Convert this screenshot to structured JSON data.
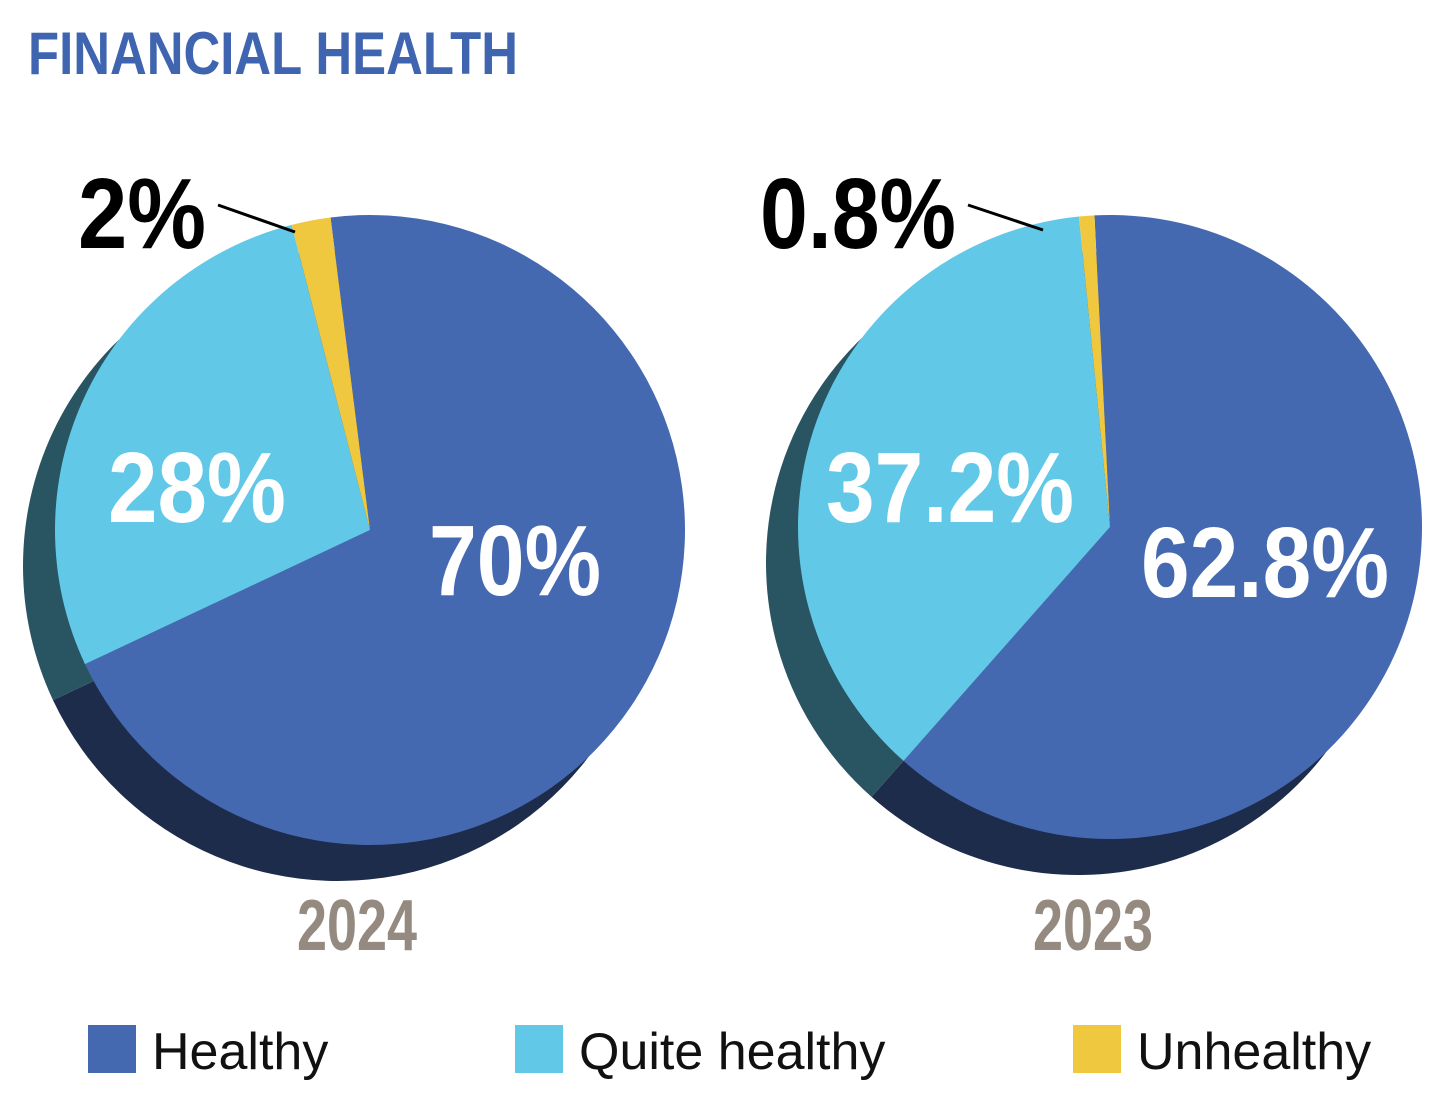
{
  "title": "FINANCIAL HEALTH",
  "chart_data": [
    {
      "type": "pie",
      "title": "2024",
      "categories": [
        "Healthy",
        "Quite healthy",
        "Unhealthy"
      ],
      "values": [
        70,
        28,
        2
      ],
      "value_labels": [
        "70%",
        "28%",
        "2%"
      ],
      "colors": [
        "#4569b1",
        "#62c8e8",
        "#f0c840"
      ]
    },
    {
      "type": "pie",
      "title": "2023",
      "categories": [
        "Healthy",
        "Quite healthy",
        "Unhealthy"
      ],
      "values": [
        62.8,
        37.2,
        0.8
      ],
      "value_labels": [
        "62.8%",
        "37.2%",
        "0.8%"
      ],
      "colors": [
        "#4569b1",
        "#62c8e8",
        "#f0c840"
      ]
    }
  ]
}
